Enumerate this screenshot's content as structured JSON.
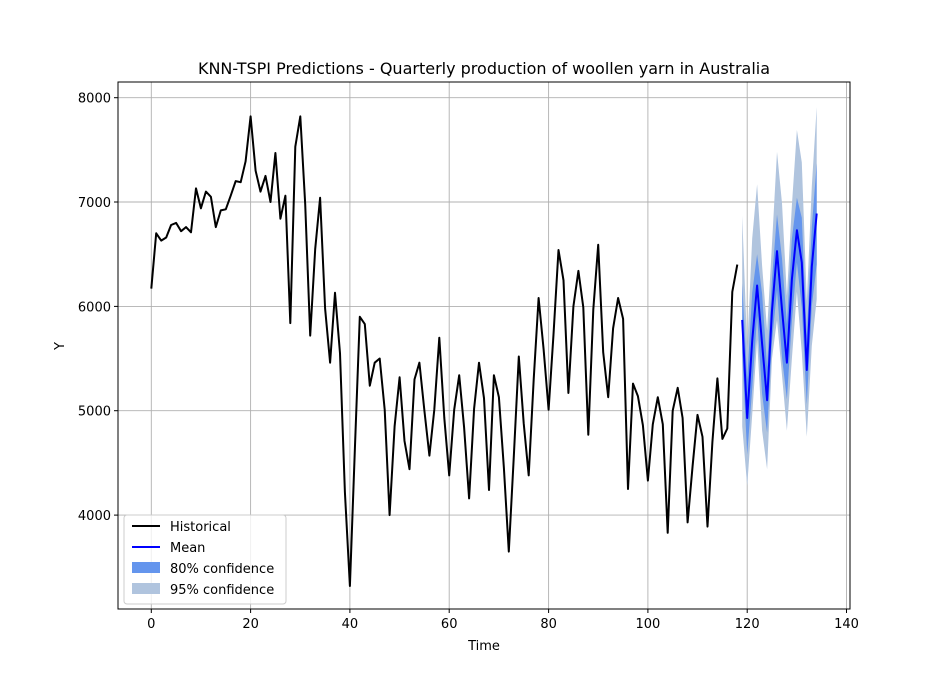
{
  "chart_data": {
    "type": "line",
    "title": "KNN-TSPI Predictions - Quarterly production of woollen yarn in Australia",
    "xlabel": "Time",
    "ylabel": "Y",
    "xlim": [
      -6.7,
      140.7
    ],
    "ylim": [
      3100,
      8150
    ],
    "x_ticks": [
      0,
      20,
      40,
      60,
      80,
      100,
      120,
      140
    ],
    "y_ticks": [
      4000,
      5000,
      6000,
      7000,
      8000
    ],
    "grid": true,
    "legend_position": "lower-left",
    "colors": {
      "historical": "#000000",
      "mean": "#0000ff",
      "ci80": "#6495ed",
      "ci95": "#b0c4de",
      "grid": "#b0b0b0"
    },
    "legend": [
      {
        "label": "Historical",
        "kind": "line",
        "color": "#000000"
      },
      {
        "label": "Mean",
        "kind": "line",
        "color": "#0000ff"
      },
      {
        "label": "80% confidence",
        "kind": "patch",
        "color": "#6495ed"
      },
      {
        "label": "95% confidence",
        "kind": "patch",
        "color": "#b0c4de"
      }
    ],
    "series": [
      {
        "name": "Historical",
        "x_start": 0,
        "values": [
          6170,
          6700,
          6630,
          6660,
          6780,
          6800,
          6720,
          6760,
          6710,
          7130,
          6940,
          7100,
          7050,
          6760,
          6920,
          6930,
          7060,
          7200,
          7190,
          7390,
          7820,
          7300,
          7100,
          7250,
          7000,
          7470,
          6840,
          7060,
          5840,
          7530,
          7820,
          6980,
          5720,
          6550,
          7040,
          5980,
          5460,
          6130,
          5550,
          4220,
          3320,
          4640,
          5900,
          5830,
          5240,
          5460,
          5500,
          5010,
          4000,
          4850,
          5320,
          4710,
          4440,
          5300,
          5460,
          5000,
          4570,
          5010,
          5700,
          4930,
          4380,
          5010,
          5340,
          4840,
          4160,
          5020,
          5460,
          5120,
          4240,
          5340,
          5130,
          4450,
          3650,
          4560,
          5520,
          4880,
          4380,
          5300,
          6080,
          5590,
          5010,
          5730,
          6540,
          6250,
          5170,
          6000,
          6340,
          5990,
          4770,
          5970,
          6590,
          5560,
          5130,
          5790,
          6080,
          5880,
          4250,
          5260,
          5140,
          4860,
          4330,
          4870,
          5130,
          4870,
          3830,
          5000,
          5220,
          4930,
          3930,
          4470,
          4960,
          4750,
          3890,
          4700,
          5310,
          4730,
          4830,
          6140,
          6400
        ]
      },
      {
        "name": "Mean",
        "x_start": 119,
        "values": [
          5870,
          4930,
          5670,
          6200,
          5640,
          5100,
          5960,
          6530,
          5970,
          5460,
          6260,
          6730,
          6420,
          5390,
          6380,
          6890
        ],
        "lower80": [
          5550,
          4580,
          5210,
          5910,
          5160,
          4790,
          5660,
          6160,
          5510,
          5110,
          5860,
          6420,
          5990,
          5060,
          6000,
          6400
        ],
        "upper80": [
          6220,
          5300,
          6130,
          6500,
          6120,
          5420,
          6260,
          6880,
          6460,
          5830,
          6650,
          7040,
          6850,
          5720,
          6760,
          7370
        ],
        "lower95": [
          4850,
          4280,
          4960,
          5680,
          4810,
          4440,
          5500,
          5870,
          5340,
          4810,
          5500,
          6140,
          5560,
          4750,
          5620,
          6070
        ],
        "upper95": [
          6870,
          5600,
          6650,
          7170,
          6390,
          5770,
          6600,
          7480,
          6990,
          6100,
          6970,
          7690,
          7380,
          6050,
          7150,
          7910
        ]
      }
    ]
  }
}
